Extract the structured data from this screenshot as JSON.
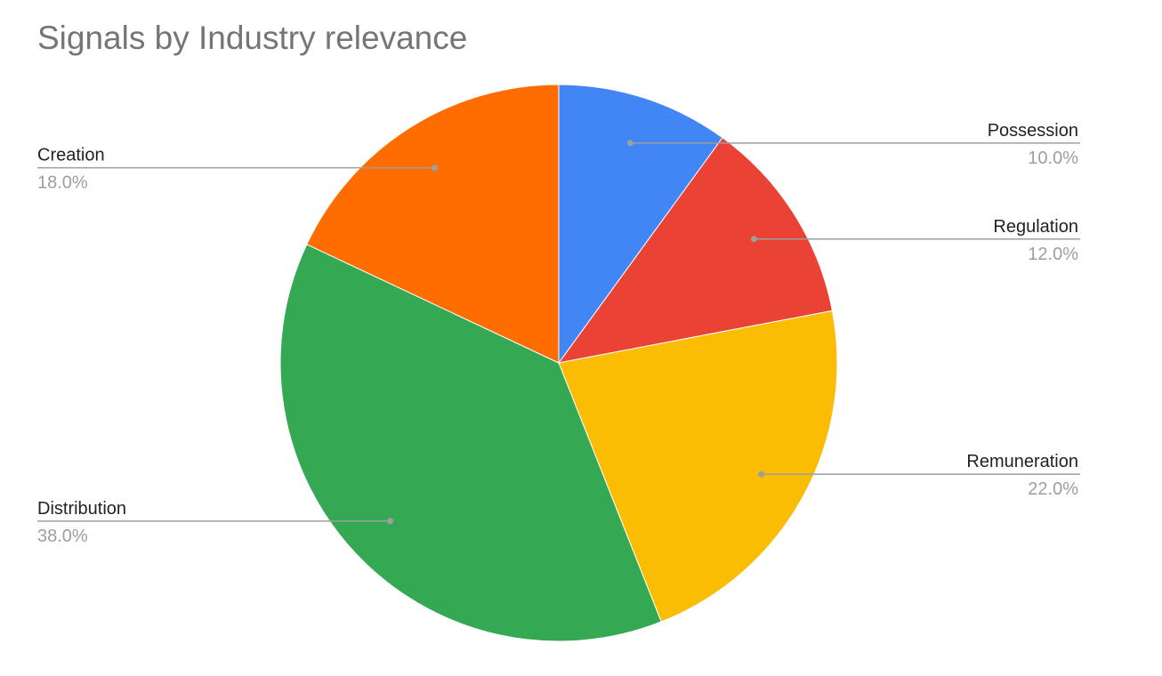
{
  "chart_data": {
    "type": "pie",
    "title": "Signals by Industry relevance",
    "start_angle_deg": 0,
    "direction": "clockwise",
    "slices": [
      {
        "label": "Possession",
        "value": 10.0,
        "display": "10.0%",
        "color": "#4285F4",
        "side": "right"
      },
      {
        "label": "Regulation",
        "value": 12.0,
        "display": "12.0%",
        "color": "#EA4335",
        "side": "right"
      },
      {
        "label": "Remuneration",
        "value": 22.0,
        "display": "22.0%",
        "color": "#FBBC04",
        "side": "right"
      },
      {
        "label": "Distribution",
        "value": 38.0,
        "display": "38.0%",
        "color": "#34A853",
        "side": "left"
      },
      {
        "label": "Creation",
        "value": 18.0,
        "display": "18.0%",
        "color": "#FF6D01",
        "side": "left"
      }
    ],
    "legend": "none"
  }
}
